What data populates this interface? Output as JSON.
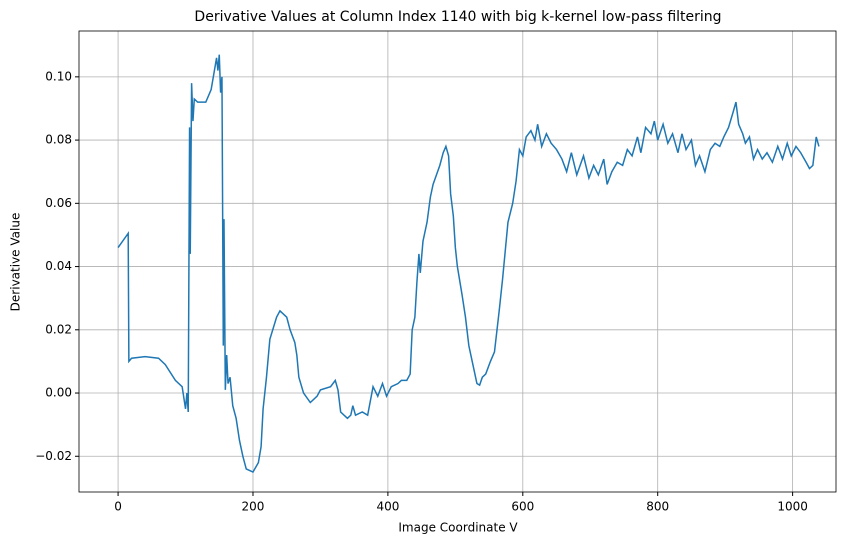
{
  "chart_data": {
    "type": "line",
    "title": "Derivative Values at Column Index 1140 with big k-kernel low-pass filtering",
    "x_label": "Image Coordinate V",
    "y_label": "Derivative Value",
    "grid": true,
    "xlim": [
      -52,
      1091
    ],
    "ylim": [
      -0.0313,
      0.1145
    ],
    "xticks": [
      0,
      200,
      400,
      600,
      800,
      1000
    ],
    "yticks": [
      {
        "value": -0.02,
        "label": "−0.02"
      },
      {
        "value": 0,
        "label": "0.00"
      },
      {
        "value": 0.02,
        "label": "0.02"
      },
      {
        "value": 0.04,
        "label": "0.04"
      },
      {
        "value": 0.06,
        "label": "0.06"
      },
      {
        "value": 0.08,
        "label": "0.08"
      },
      {
        "value": 0.1,
        "label": "0.10"
      }
    ],
    "x": [
      0,
      15,
      16,
      20,
      40,
      60,
      70,
      85,
      95,
      100,
      102,
      104,
      106,
      107,
      109,
      111,
      113,
      118,
      130,
      138,
      142,
      146,
      148,
      150,
      152,
      154,
      156,
      157,
      159,
      161,
      163,
      166,
      170,
      175,
      180,
      185,
      190,
      200,
      208,
      212,
      215,
      220,
      225,
      235,
      240,
      250,
      255,
      262,
      265,
      268,
      275,
      285,
      295,
      300,
      315,
      322,
      326,
      330,
      340,
      345,
      348,
      352,
      362,
      370,
      378,
      385,
      392,
      398,
      405,
      415,
      420,
      428,
      433,
      436,
      440,
      443,
      446,
      448,
      452,
      458,
      463,
      467,
      472,
      477,
      482,
      486,
      490,
      493,
      497,
      500,
      503,
      510,
      515,
      520,
      525,
      532,
      536,
      540,
      545,
      552,
      558,
      565,
      570,
      578,
      585,
      590,
      595,
      600,
      605,
      612,
      618,
      622,
      628,
      635,
      642,
      650,
      658,
      665,
      672,
      680,
      690,
      698,
      705,
      712,
      720,
      725,
      732,
      740,
      748,
      755,
      762,
      770,
      775,
      782,
      790,
      795,
      800,
      808,
      815,
      822,
      830,
      836,
      842,
      850,
      856,
      862,
      870,
      878,
      885,
      892,
      898,
      905,
      912,
      916,
      920,
      926,
      930,
      936,
      942,
      948,
      955,
      962,
      970,
      978,
      985,
      992,
      998,
      1005,
      1012,
      1020,
      1025,
      1030,
      1035,
      1039
    ],
    "series": [
      {
        "name": "Derivative",
        "color": "#1f77b4",
        "values": [
          0.046,
          0.0505,
          0.01,
          0.011,
          0.0115,
          0.011,
          0.009,
          0.004,
          0.002,
          -0.005,
          0.0,
          -0.006,
          0.084,
          0.044,
          0.098,
          0.086,
          0.093,
          0.092,
          0.092,
          0.096,
          0.101,
          0.106,
          0.102,
          0.107,
          0.095,
          0.1,
          0.015,
          0.055,
          0.001,
          0.012,
          0.003,
          0.005,
          -0.004,
          -0.008,
          -0.015,
          -0.02,
          -0.024,
          -0.025,
          -0.022,
          -0.017,
          -0.005,
          0.005,
          0.017,
          0.024,
          0.026,
          0.024,
          0.02,
          0.016,
          0.012,
          0.005,
          0.0,
          -0.003,
          -0.001,
          0.001,
          0.002,
          0.004,
          0.001,
          -0.006,
          -0.008,
          -0.007,
          -0.004,
          -0.007,
          -0.006,
          -0.007,
          0.002,
          -0.001,
          0.003,
          -0.001,
          0.002,
          0.003,
          0.004,
          0.004,
          0.006,
          0.02,
          0.024,
          0.035,
          0.044,
          0.038,
          0.048,
          0.054,
          0.062,
          0.066,
          0.069,
          0.072,
          0.076,
          0.078,
          0.075,
          0.063,
          0.056,
          0.046,
          0.04,
          0.031,
          0.024,
          0.015,
          0.01,
          0.003,
          0.0025,
          0.005,
          0.006,
          0.01,
          0.013,
          0.026,
          0.036,
          0.054,
          0.06,
          0.067,
          0.077,
          0.075,
          0.081,
          0.083,
          0.08,
          0.085,
          0.078,
          0.082,
          0.079,
          0.077,
          0.074,
          0.07,
          0.076,
          0.069,
          0.075,
          0.068,
          0.072,
          0.069,
          0.074,
          0.066,
          0.07,
          0.073,
          0.072,
          0.077,
          0.075,
          0.081,
          0.076,
          0.084,
          0.082,
          0.086,
          0.08,
          0.085,
          0.079,
          0.082,
          0.076,
          0.082,
          0.077,
          0.08,
          0.072,
          0.075,
          0.07,
          0.077,
          0.079,
          0.078,
          0.081,
          0.084,
          0.089,
          0.092,
          0.085,
          0.082,
          0.079,
          0.081,
          0.074,
          0.077,
          0.074,
          0.076,
          0.073,
          0.078,
          0.074,
          0.079,
          0.075,
          0.078,
          0.076,
          0.073,
          0.071,
          0.072,
          0.081,
          0.078
        ]
      }
    ]
  }
}
